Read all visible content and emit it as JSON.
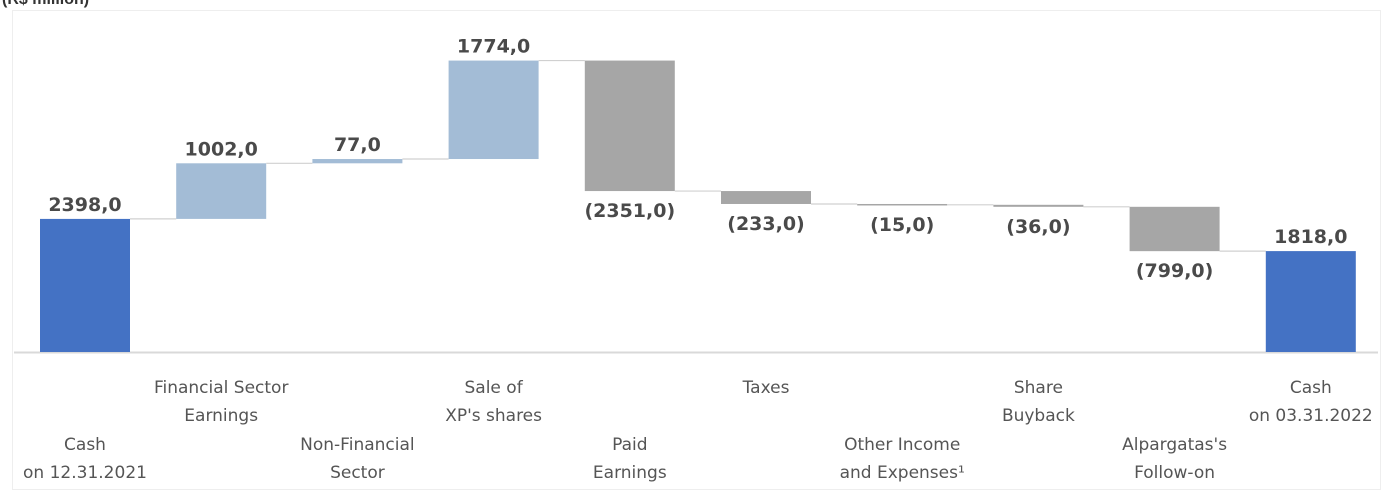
{
  "unit_label": "(R$ million)",
  "colors": {
    "total": "#4472c4",
    "increase": "#a3bcd6",
    "decrease": "#a6a6a6",
    "connector": "#d0d0d0",
    "axis": "#d9d9d9",
    "text_value": "#4a4a4a",
    "text_category": "#555555"
  },
  "chart_data": {
    "type": "bar",
    "subtype": "waterfall",
    "title": "",
    "unit": "R$ million",
    "xlabel": "",
    "ylabel": "",
    "grid": false,
    "legend": "none",
    "ylim": [
      0,
      5200
    ],
    "categories": [
      {
        "label_lines": [
          "Cash",
          "on 12.31.2021"
        ],
        "value": 2398.0,
        "label": "2398,0",
        "kind": "total"
      },
      {
        "label_lines": [
          "Financial Sector",
          "Earnings"
        ],
        "value": 1002.0,
        "label": "1002,0",
        "kind": "increase"
      },
      {
        "label_lines": [
          "Non-Financial",
          "Sector"
        ],
        "value": 77.0,
        "label": "77,0",
        "kind": "increase"
      },
      {
        "label_lines": [
          "Sale of",
          "XP's shares"
        ],
        "value": 1774.0,
        "label": "1774,0",
        "kind": "increase"
      },
      {
        "label_lines": [
          "Paid",
          "Earnings"
        ],
        "value": -2351.0,
        "label": "(2351,0)",
        "kind": "decrease"
      },
      {
        "label_lines": [
          "Taxes"
        ],
        "value": -233.0,
        "label": "(233,0)",
        "kind": "decrease"
      },
      {
        "label_lines": [
          "Other Income",
          "and Expenses¹"
        ],
        "value": -15.0,
        "label": "(15,0)",
        "kind": "decrease"
      },
      {
        "label_lines": [
          "Share",
          "Buyback"
        ],
        "value": -36.0,
        "label": "(36,0)",
        "kind": "decrease"
      },
      {
        "label_lines": [
          "Alpargatas's",
          "Follow-on"
        ],
        "value": -799.0,
        "label": "(799,0)",
        "kind": "decrease"
      },
      {
        "label_lines": [
          "Cash",
          "on 03.31.2022"
        ],
        "value": 1818.0,
        "label": "1818,0",
        "kind": "total"
      }
    ]
  }
}
